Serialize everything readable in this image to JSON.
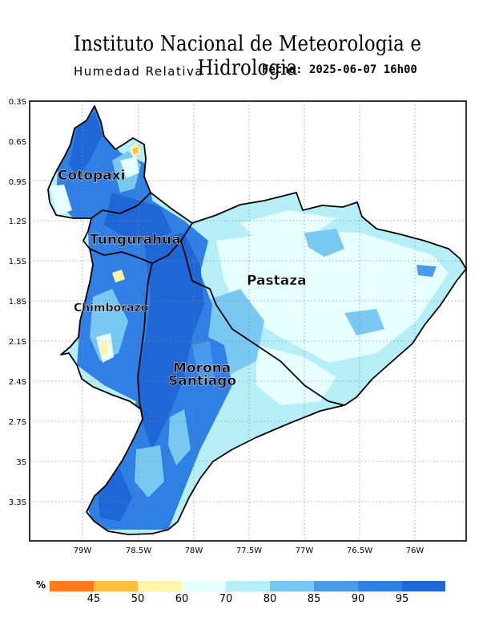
{
  "header": {
    "title": "Instituto Nacional de Meteorologia e Hidrologia",
    "subtitle": "Humedad Relativa",
    "date": "Fecha: 2025-06-07 16h00"
  },
  "axes": {
    "lat_labels": [
      "0.3S",
      "0.6S",
      "0.9S",
      "1.2S",
      "1.5S",
      "1.8S",
      "2.1S",
      "2.4S",
      "2.7S",
      "3S",
      "3.3S"
    ],
    "lon_labels": [
      "79W",
      "78.5W",
      "78W",
      "77.5W",
      "77W",
      "76.5W",
      "76W"
    ]
  },
  "provinces": [
    {
      "name": "Cotopaxi",
      "lines": [
        "Cotopaxi"
      ]
    },
    {
      "name": "Tungurahua",
      "lines": [
        "Tungurahua"
      ]
    },
    {
      "name": "Pastaza",
      "lines": [
        "Pastaza"
      ]
    },
    {
      "name": "Chimborazo",
      "lines": [
        "Chimborazo"
      ]
    },
    {
      "name": "Morona Santiago",
      "lines": [
        "Morona",
        "Santiago"
      ]
    }
  ],
  "colorbar": {
    "unit": "%",
    "ticks": [
      "45",
      "50",
      "60",
      "70",
      "80",
      "85",
      "90",
      "95"
    ],
    "colors": {
      "lt45": "#ff7a1a",
      "45_50": "#ffbe40",
      "50_60": "#fff5a8",
      "60_70": "#e6ffff",
      "70_80": "#b6eef8",
      "80_85": "#78c8f2",
      "85_90": "#4a9aec",
      "90_95": "#2f7fe4",
      "gt95": "#1f66d6"
    }
  }
}
